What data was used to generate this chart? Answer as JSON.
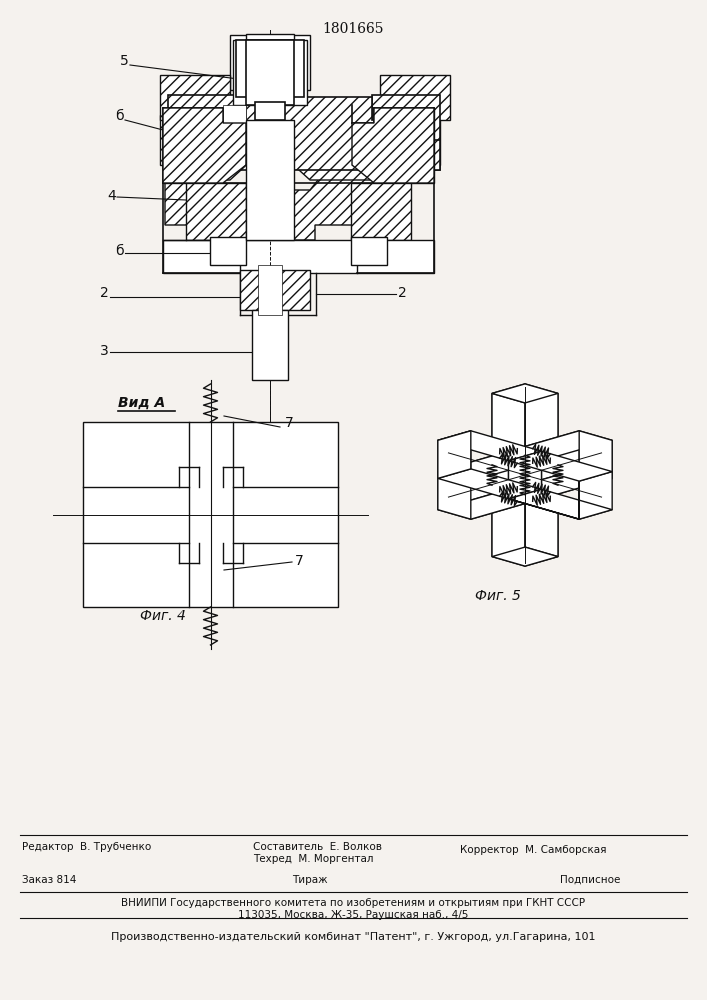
{
  "patent_number": "1801665",
  "bg": "#f5f2ee",
  "lc": "#111111",
  "white": "#ffffff",
  "fig4_label": "Фиг. 4",
  "fig5_label": "Фиг. 5",
  "vid_a": "Вид А"
}
